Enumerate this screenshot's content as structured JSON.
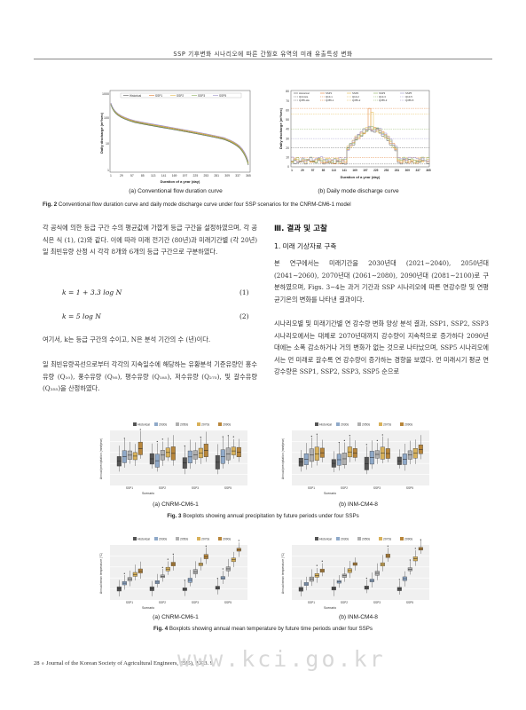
{
  "header": {
    "running_title": "SSP 기후변화 시나리오에 따른 간월호 유역의 미래 유출특성 변화"
  },
  "figure2": {
    "left": {
      "sub_caption": "(a) Conventional flow duration curve",
      "ylabel": "Daily discharge (m³/sec)",
      "xlabel": "Duration of a year (day)",
      "y_ticks": [
        "1000",
        "100",
        "10",
        "1"
      ],
      "x_ticks": [
        "1",
        "29",
        "57",
        "85",
        "113",
        "141",
        "169",
        "197",
        "225",
        "253",
        "281",
        "309",
        "337",
        "365"
      ],
      "legend": [
        "Historical",
        "SSP1",
        "SSP2",
        "SSP3",
        "SSP5"
      ]
    },
    "right": {
      "sub_caption": "(b) Daily mode discharge curve",
      "ylabel": "Daily discharge (m³/sec)",
      "xlabel": "Duration of a year (day)",
      "y_ticks": [
        "80",
        "70",
        "60",
        "50",
        "40",
        "30",
        "20",
        "10",
        "0"
      ],
      "x_ticks": [
        "1",
        "29",
        "57",
        "85",
        "113",
        "141",
        "169",
        "197",
        "225",
        "253",
        "281",
        "309",
        "337",
        "365"
      ],
      "legend": [
        "Historical",
        "SSP1",
        "SSP2",
        "SSP3",
        "SSP5",
        "Q10-His",
        "Q10-1",
        "Q10-2",
        "Q10-3",
        "Q10-5",
        "Q355-His",
        "Q355-1",
        "Q355-2",
        "Q355-3",
        "Q355-5"
      ]
    },
    "caption_label": "Fig. 2",
    "caption_text": "Conventional flow duration curve and daily mode discharge curve under four SSP scenarios for the CNRM-CM6-1 model"
  },
  "left_column": {
    "para1": "각 공식에 의한 등급 구간 수의 평균값에 가깝게 등급 구간을 설정하였으며, 각 공식은 식 (1), (2)와 같다. 이에 따라 미래 전기간 (80년)과 미래기간별 (각 20년) 일 최빈유량 산정 시 각각 8개와 6개의 등급 구간으로 구분하였다.",
    "eq1": "k = 1 + 3.3 log N",
    "eq1_num": "(1)",
    "eq2": "k = 5 log N",
    "eq2_num": "(2)",
    "para2": "여기서, k는 등급 구간의 수이고, N은 분석 기간의 수 (년)이다.",
    "para3": "일 최빈유량곡선으로부터 각각의 지속일수에 해당하는 유황분석 기준유량인 홍수유량 (Q₁₀), 풍수유량 (Q₉₅), 평수유량 (Q₁₈₅), 저수유량 (Q₂₇₅), 및 갈수유량 (Q₃₅₅)을 산정하였다."
  },
  "right_column": {
    "section_title": "Ⅲ. 결과 및 고찰",
    "subsection_title": "1. 미래 기상자료 구축",
    "para1": "본 연구에서는 미래기간을 2030년대 (2021∼2040), 2050년대 (2041∼2060), 2070년대 (2061∼2080), 2090년대 (2081∼2100)로 구분하였으며, Figs. 3∼4는 과거 기간과 SSP 시나리오에 따른 연강수량 및 연평균기온의 변화를 나타낸 결과이다.",
    "para2": "시나리오별 및 미래기간별 연 강수량 변화 양상 분석 결과, SSP1, SSP2, SSP3 시나리오에서는 대체로 2070년대까지 강수량이 지속적으로 증가하다 2090년대에는 소폭 감소하거나 거의 변화가 없는 것으로 나타났으며, SSP5 시나리오에서는 먼 미래로 갈수록 연 강수량이 증가하는 경향을 보였다. 먼 미래시기 평균 연 강수량은 SSP1, SSP2, SSP3, SSP5 순으로"
  },
  "figure3": {
    "legend": [
      "Historical",
      "2030s",
      "2050s",
      "2070s",
      "2090s"
    ],
    "ylabel": "Annual precipitation (mm/year)",
    "xlabel": "Scenario",
    "categories": [
      "SSP1",
      "SSP2",
      "SSP3",
      "SSP5"
    ],
    "left_sub_caption": "(a) CNRM-CM6-1",
    "right_sub_caption": "(b) INM-CM4-8",
    "caption_label": "Fig. 3",
    "caption_text": "Boxplots showing annual precipitation by future periods under four SSPs"
  },
  "figure4": {
    "legend": [
      "Historical",
      "2030s",
      "2050s",
      "2070s",
      "2090s"
    ],
    "ylabel": "Annual mean temperature (°C)",
    "xlabel": "Scenario",
    "categories": [
      "SSP1",
      "SSP2",
      "SSP3",
      "SSP5"
    ],
    "left_sub_caption": "(a) CNRM-CM6-1",
    "right_sub_caption": "(b) INM-CM4-8",
    "caption_label": "Fig. 4",
    "caption_text": "Boxplots showing annual mean temperature by future time periods under four SSPs"
  },
  "footer": {
    "page_number": "28",
    "journal": "∘ Journal of the Korean Society of Agricultural Engineers, 65(5), 2023. 9",
    "watermark": "www.kci.go.kr"
  },
  "colors": {
    "historical": "#555555",
    "y2030s": "#8fa9c9",
    "y2050s": "#b0b0b0",
    "y2070s": "#d8b15a",
    "y2090s": "#b8863b",
    "ssp1": "#e07a2c",
    "ssp2": "#e5b94a",
    "ssp3": "#8bb05a",
    "ssp5": "#9a8fc8"
  }
}
